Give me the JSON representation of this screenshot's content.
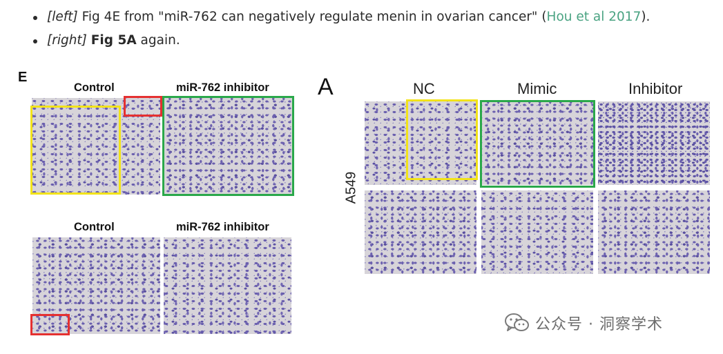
{
  "bullets": [
    {
      "tag": "[left]",
      "text_before": " Fig 4E from \"miR-762 can negatively regulate menin in ovarian cancer\" (",
      "link": "Hou et al 2017",
      "text_after": ")."
    },
    {
      "tag": "[right]",
      "bold": "Fig 5A",
      "text_after": " again."
    }
  ],
  "left_figure": {
    "panel_letter": "E",
    "row1": {
      "control_label": "Control",
      "inhibitor_label": "miR-762 inhibitor"
    },
    "row2": {
      "control_label": "Control",
      "inhibitor_label": "miR-762 inhibitor"
    }
  },
  "right_figure": {
    "panel_letter": "A",
    "columns": [
      "NC",
      "Mimic",
      "Inhibitor"
    ],
    "row_label": "A549"
  },
  "colors": {
    "link": "#4aa382",
    "box_yellow": "#f2e319",
    "box_red": "#e53030",
    "box_green": "#2aa84a",
    "stain": "#6a5fae"
  },
  "watermark": {
    "icon": "wechat-icon",
    "text": "公众号 · 洞察学术"
  }
}
